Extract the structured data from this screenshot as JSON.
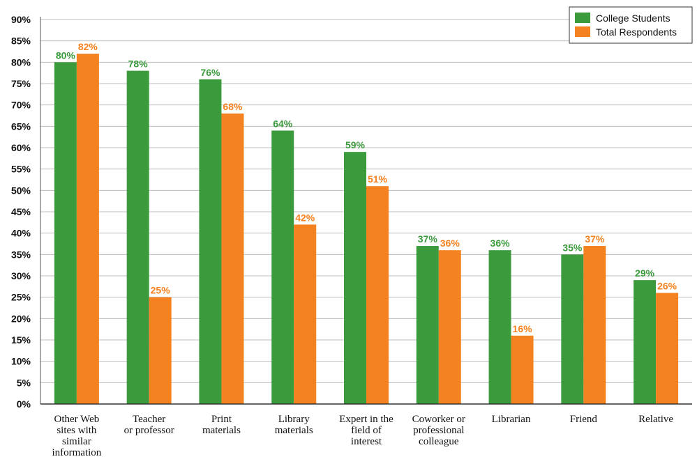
{
  "chart_data": {
    "type": "bar",
    "categories": [
      [
        "Other Web",
        "sites with",
        "similar",
        "information"
      ],
      [
        "Teacher",
        "or professor"
      ],
      [
        "Print",
        "materials"
      ],
      [
        "Library",
        "materials"
      ],
      [
        "Expert in the",
        "field of",
        "interest"
      ],
      [
        "Coworker or",
        "professional",
        "colleague"
      ],
      [
        "Librarian"
      ],
      [
        "Friend"
      ],
      [
        "Relative"
      ]
    ],
    "series": [
      {
        "name": "College Students",
        "color": "#3a9a3c",
        "values": [
          80,
          78,
          76,
          64,
          59,
          37,
          36,
          35,
          29
        ],
        "labels": [
          "80%",
          "78%",
          "76%",
          "64%",
          "59%",
          "37%",
          "36%",
          "35%",
          "29%"
        ]
      },
      {
        "name": "Total Respondents",
        "color": "#f58220",
        "values": [
          82,
          25,
          68,
          42,
          51,
          36,
          16,
          37,
          26
        ],
        "labels": [
          "82%",
          "25%",
          "68%",
          "42%",
          "51%",
          "36%",
          "16%",
          "37%",
          "26%"
        ]
      }
    ],
    "ylim": [
      0,
      90
    ],
    "yticks": [
      "0%",
      "5%",
      "10%",
      "15%",
      "20%",
      "25%",
      "30%",
      "35%",
      "40%",
      "45%",
      "50%",
      "55%",
      "60%",
      "65%",
      "70%",
      "75%",
      "80%",
      "85%",
      "90%"
    ],
    "grid": true,
    "legend_position": "top-right"
  }
}
